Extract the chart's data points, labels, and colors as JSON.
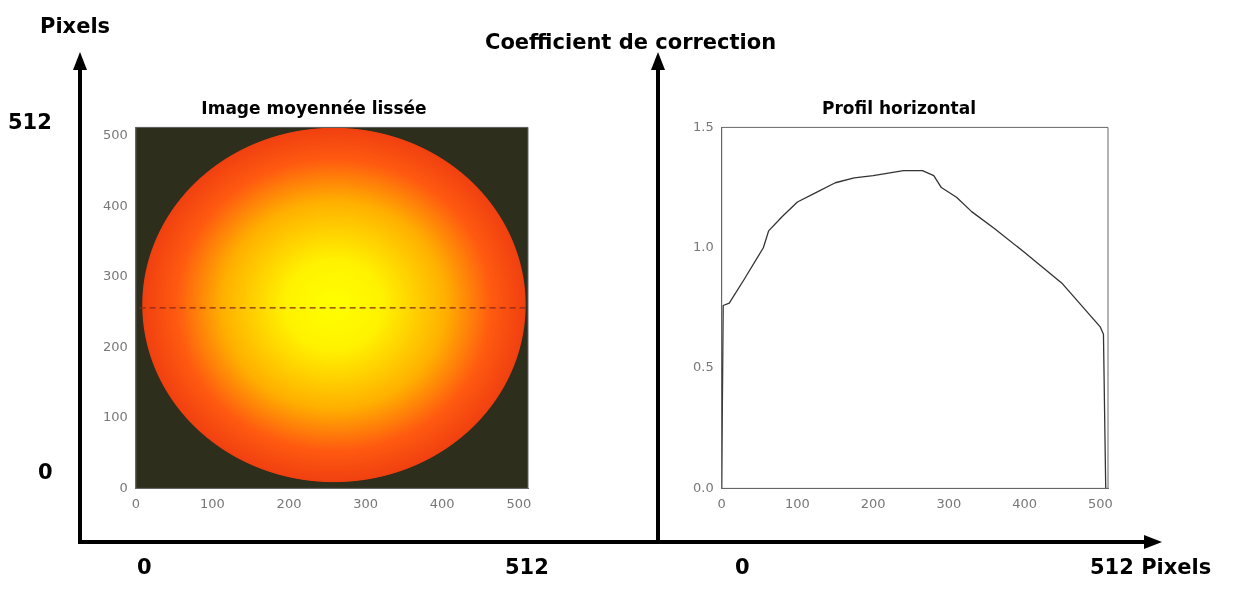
{
  "chart_data": [
    {
      "type": "line",
      "title": "Image moyennée lissée",
      "ylabel": "Pixels",
      "annotations": [
        "512",
        "0",
        "0",
        "512"
      ],
      "xlim": [
        0,
        512
      ],
      "ylim": [
        0,
        512
      ],
      "xticks": [
        0,
        100,
        200,
        300,
        400,
        500
      ],
      "yticks": [
        0,
        100,
        200,
        300,
        400,
        500
      ],
      "x": [
        5,
        510
      ],
      "series": [
        {
          "color": "#8b2a1a",
          "line_style": "dashed",
          "values": [
            256,
            256
          ]
        }
      ]
    },
    {
      "type": "line",
      "title": "Profil horizontal",
      "ylabel": "Coefficient de correction",
      "annotations": [
        "0",
        "512 Pixels"
      ],
      "xlim": [
        0,
        510
      ],
      "ylim": [
        0,
        1.5
      ],
      "xticks": [
        0,
        100,
        200,
        300,
        400,
        500
      ],
      "yticks": [
        {
          "value": 0,
          "label": "0.0"
        },
        {
          "value": 0.5,
          "label": "0.5"
        },
        {
          "value": 1,
          "label": "1.0"
        },
        {
          "value": 1.5,
          "label": "1.5"
        }
      ],
      "x": [
        0,
        2,
        10,
        30,
        55,
        62,
        80,
        100,
        125,
        150,
        175,
        200,
        220,
        240,
        265,
        280,
        290,
        310,
        330,
        360,
        400,
        450,
        500,
        504,
        507
      ],
      "series": [
        {
          "color": "#333333",
          "values": [
            0,
            0.76,
            0.77,
            0.87,
            1.0,
            1.07,
            1.13,
            1.19,
            1.23,
            1.27,
            1.29,
            1.3,
            1.31,
            1.32,
            1.32,
            1.3,
            1.25,
            1.21,
            1.15,
            1.08,
            0.98,
            0.85,
            0.67,
            0.64,
            0
          ]
        }
      ]
    }
  ]
}
